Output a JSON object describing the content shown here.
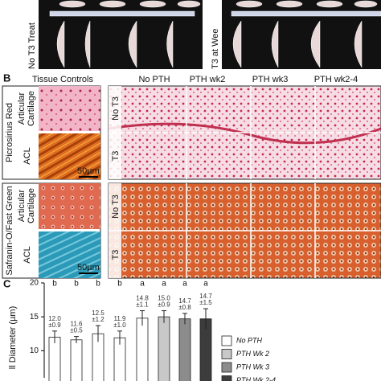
{
  "panel_a": {
    "row_labels": [
      "No T3 Treat",
      "T3 at Wee"
    ]
  },
  "panel_b": {
    "label": "B",
    "column_headers": [
      "Tissue Controls",
      "No PTH",
      "PTH wk2",
      "PTH wk3",
      "PTH wk2-4"
    ],
    "stain_labels": [
      "Picrosirius Red",
      "Safranin-O/Fast Green"
    ],
    "control_labels": [
      "Articular",
      "Cartilage",
      "ACL"
    ],
    "treatment_labels": [
      "No T3",
      "T3"
    ],
    "scale_bar": "50µm"
  },
  "chart_data": {
    "type": "bar",
    "label": "C",
    "y_label": "ll Diameter (µm)",
    "categories": [
      null,
      null,
      null,
      null,
      null,
      null,
      null,
      null
    ],
    "values": [
      12.0,
      11.6,
      12.5,
      11.9,
      14.8,
      15.0,
      14.7,
      14.7
    ],
    "value_labels": [
      "12.0",
      "11.6",
      "12.5",
      "11.9",
      "14.8",
      "15.0",
      "14.7",
      "14.7"
    ],
    "errors": [
      0.9,
      0.5,
      1.2,
      1.0,
      1.1,
      0.9,
      0.8,
      1.5
    ],
    "error_labels": [
      "±0.9",
      "±0.5",
      "±1.2",
      "±1.0",
      "±1.1",
      "±0.9",
      "±0.8",
      "±1.5"
    ],
    "letters": [
      "b",
      "b",
      "b",
      "b",
      "a",
      "a",
      "a",
      "a"
    ],
    "colors": [
      "#ffffff",
      "#ffffff",
      "#ffffff",
      "#ffffff",
      "#ffffff",
      "#c8c8c8",
      "#8c8c8c",
      "#3c3c3c"
    ],
    "legend": [
      {
        "name": "No PTH",
        "color": "#ffffff"
      },
      {
        "name": "PTH Wk 2",
        "color": "#c8c8c8"
      },
      {
        "name": "PTH Wk 3",
        "color": "#8c8c8c"
      },
      {
        "name": "PTH Wk 2-4",
        "color": "#3c3c3c"
      }
    ],
    "ylim": [
      6,
      20
    ],
    "yticks": [
      10,
      15,
      20
    ]
  }
}
